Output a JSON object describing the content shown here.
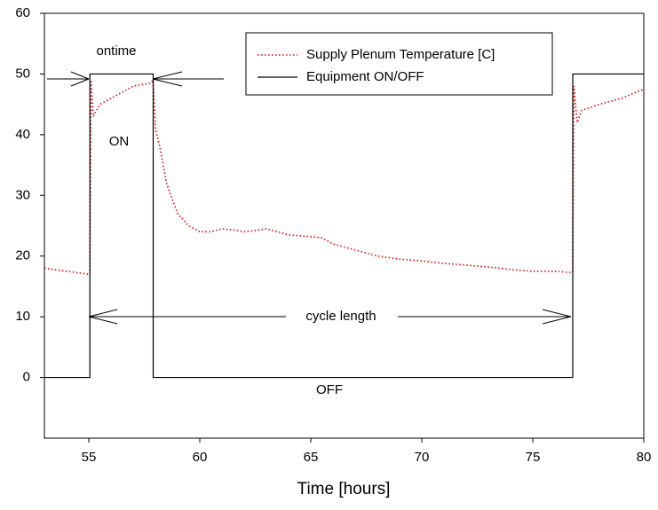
{
  "chart_data": {
    "type": "line",
    "xlabel": "Time [hours]",
    "xlim": [
      53,
      80
    ],
    "xticks": [
      55,
      60,
      65,
      70,
      75,
      80
    ],
    "ylim": [
      -10,
      60
    ],
    "yticks": [
      0,
      10,
      20,
      30,
      40,
      50,
      60
    ],
    "series": [
      {
        "name": "Supply Plenum Temperature [C]",
        "color": "#e00000",
        "dash": "dotted",
        "x": [
          53,
          54,
          55,
          55.05,
          55.1,
          55.2,
          55.5,
          56,
          56.5,
          57,
          57.8,
          57.9,
          58,
          58.2,
          58.5,
          59,
          59.5,
          60,
          60.5,
          61,
          61.5,
          62,
          62.5,
          63,
          63.5,
          64,
          65,
          65.5,
          66,
          67,
          68,
          69,
          70,
          71,
          72,
          73,
          74,
          75,
          76,
          76.7,
          76.8,
          76.85,
          77,
          77.2,
          78,
          79,
          80
        ],
        "values": [
          18,
          17.5,
          17,
          17,
          49,
          43,
          45,
          46,
          47,
          48,
          48.5,
          49,
          41,
          38,
          32,
          27,
          25,
          24,
          24,
          24.5,
          24.3,
          24,
          24.2,
          24.5,
          24,
          23.5,
          23.2,
          23,
          22,
          21,
          20,
          19.5,
          19.2,
          18.8,
          18.5,
          18.2,
          17.8,
          17.5,
          17.5,
          17.3,
          17.5,
          48,
          42,
          44,
          45,
          46,
          47.5
        ]
      },
      {
        "name": "Equipment ON/OFF",
        "color": "#000000",
        "dash": "solid",
        "x": [
          53,
          55.05,
          55.05,
          57.9,
          57.9,
          76.8,
          76.8,
          80
        ],
        "values": [
          0,
          0,
          50,
          50,
          0,
          0,
          50,
          50
        ]
      }
    ],
    "annotations": [
      "ontime",
      "ON",
      "OFF",
      "cycle length"
    ]
  }
}
